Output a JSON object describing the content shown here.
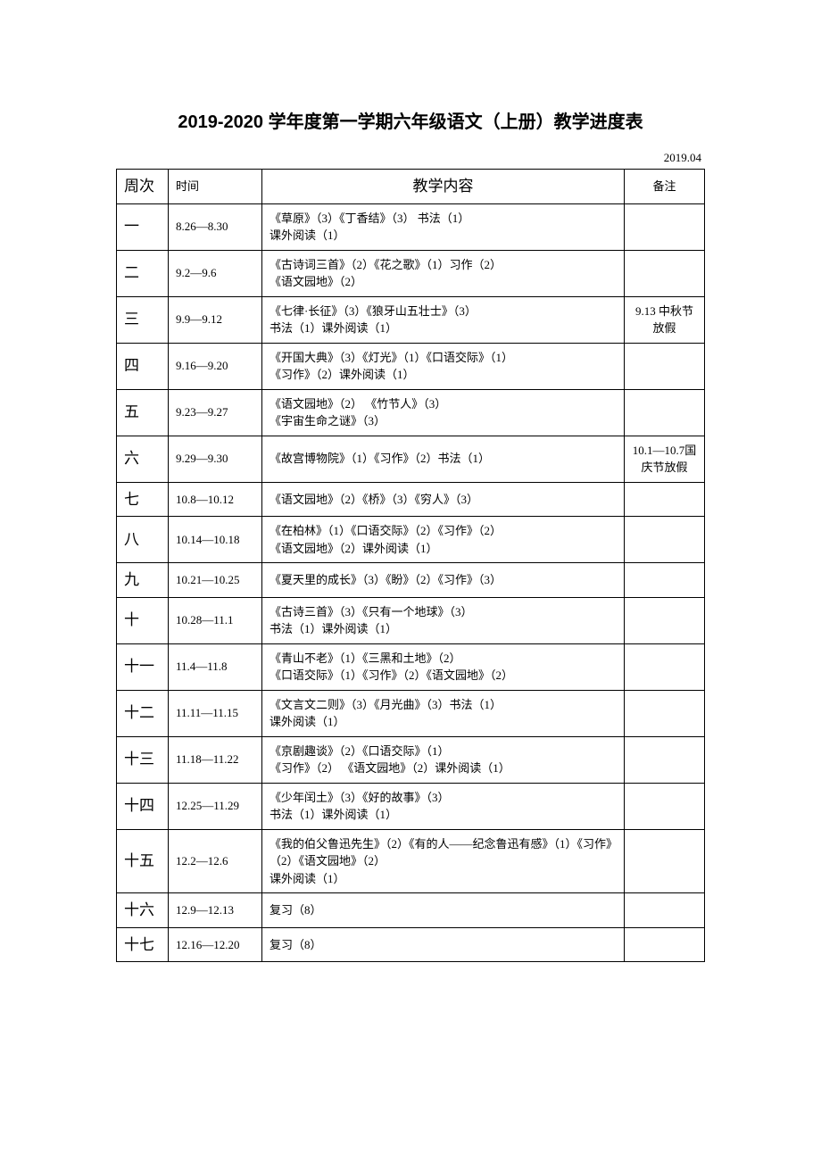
{
  "title": "2019-2020 学年度第一学期六年级语文（上册）教学进度表",
  "date_note": "2019.04",
  "headers": {
    "week": "周次",
    "time": "时间",
    "content": "教学内容",
    "note": "备注"
  },
  "rows": [
    {
      "week": "一",
      "time": "8.26—8.30",
      "content": "《草原》（3）《丁香结》（3）  书法（1）\n课外阅读（1）",
      "note": ""
    },
    {
      "week": "二",
      "time": "9.2—9.6",
      "content": "《古诗词三首》（2）《花之歌》（1）习作（2）\n《语文园地》（2）",
      "note": ""
    },
    {
      "week": "三",
      "time": "9.9—9.12",
      "content": "《七律·长征》（3）《狼牙山五壮士》（3）\n书法（1）课外阅读（1）",
      "note": "9.13 中秋节放假"
    },
    {
      "week": "四",
      "time": "9.16—9.20",
      "content": "《开国大典》（3）《灯光》（1）《口语交际》（1）\n《习作》（2）课外阅读（1）",
      "note": ""
    },
    {
      "week": "五",
      "time": "9.23—9.27",
      "content": "《语文园地》（2） 《竹节人》（3）\n《宇宙生命之谜》（3）",
      "note": ""
    },
    {
      "week": "六",
      "time": "9.29—9.30",
      "content": "《故宫博物院》（1）《习作》（2）书法（1）",
      "note": "10.1—10.7国庆节放假"
    },
    {
      "week": "七",
      "time": "10.8—10.12",
      "content": "《语文园地》（2）《桥》（3）《穷人》（3）",
      "note": ""
    },
    {
      "week": "八",
      "time": "10.14—10.18",
      "content": "《在柏林》（1）《口语交际》（2）《习作》（2）\n《语文园地》（2）课外阅读（1）",
      "note": ""
    },
    {
      "week": "九",
      "time": "10.21—10.25",
      "content": "《夏天里的成长》（3）《盼》（2）《习作》（3）",
      "note": ""
    },
    {
      "week": "十",
      "time": "10.28—11.1",
      "content": "《古诗三首》（3）《只有一个地球》（3）\n书法（1）课外阅读（1）",
      "note": ""
    },
    {
      "week": "十一",
      "time": "11.4—11.8",
      "content": "《青山不老》（1）《三黑和土地》（2）\n《口语交际》（1）《习作》（2）《语文园地》（2）",
      "note": ""
    },
    {
      "week": "十二",
      "time": "11.11—11.15",
      "content": "《文言文二则》（3）《月光曲》（3）书法（1）\n课外阅读（1）",
      "note": ""
    },
    {
      "week": "十三",
      "time": "11.18—11.22",
      "content": "《京剧趣谈》（2）《口语交际》（1）\n《习作》（2） 《语文园地》（2）课外阅读（1）",
      "note": ""
    },
    {
      "week": "十四",
      "time": "12.25—11.29",
      "content": "《少年闰土》（3）《好的故事》（3）\n书法（1）课外阅读（1）",
      "note": ""
    },
    {
      "week": "十五",
      "time": "12.2—12.6",
      "content": "《我的伯父鲁迅先生》（2）《有的人——纪念鲁迅有感》（1）《习作》（2）《语文园地》（2）\n课外阅读（1）",
      "note": ""
    },
    {
      "week": "十六",
      "time": "12.9—12.13",
      "content": "复习（8）",
      "note": ""
    },
    {
      "week": "十七",
      "time": "12.16—12.20",
      "content": "复习（8）",
      "note": ""
    }
  ]
}
